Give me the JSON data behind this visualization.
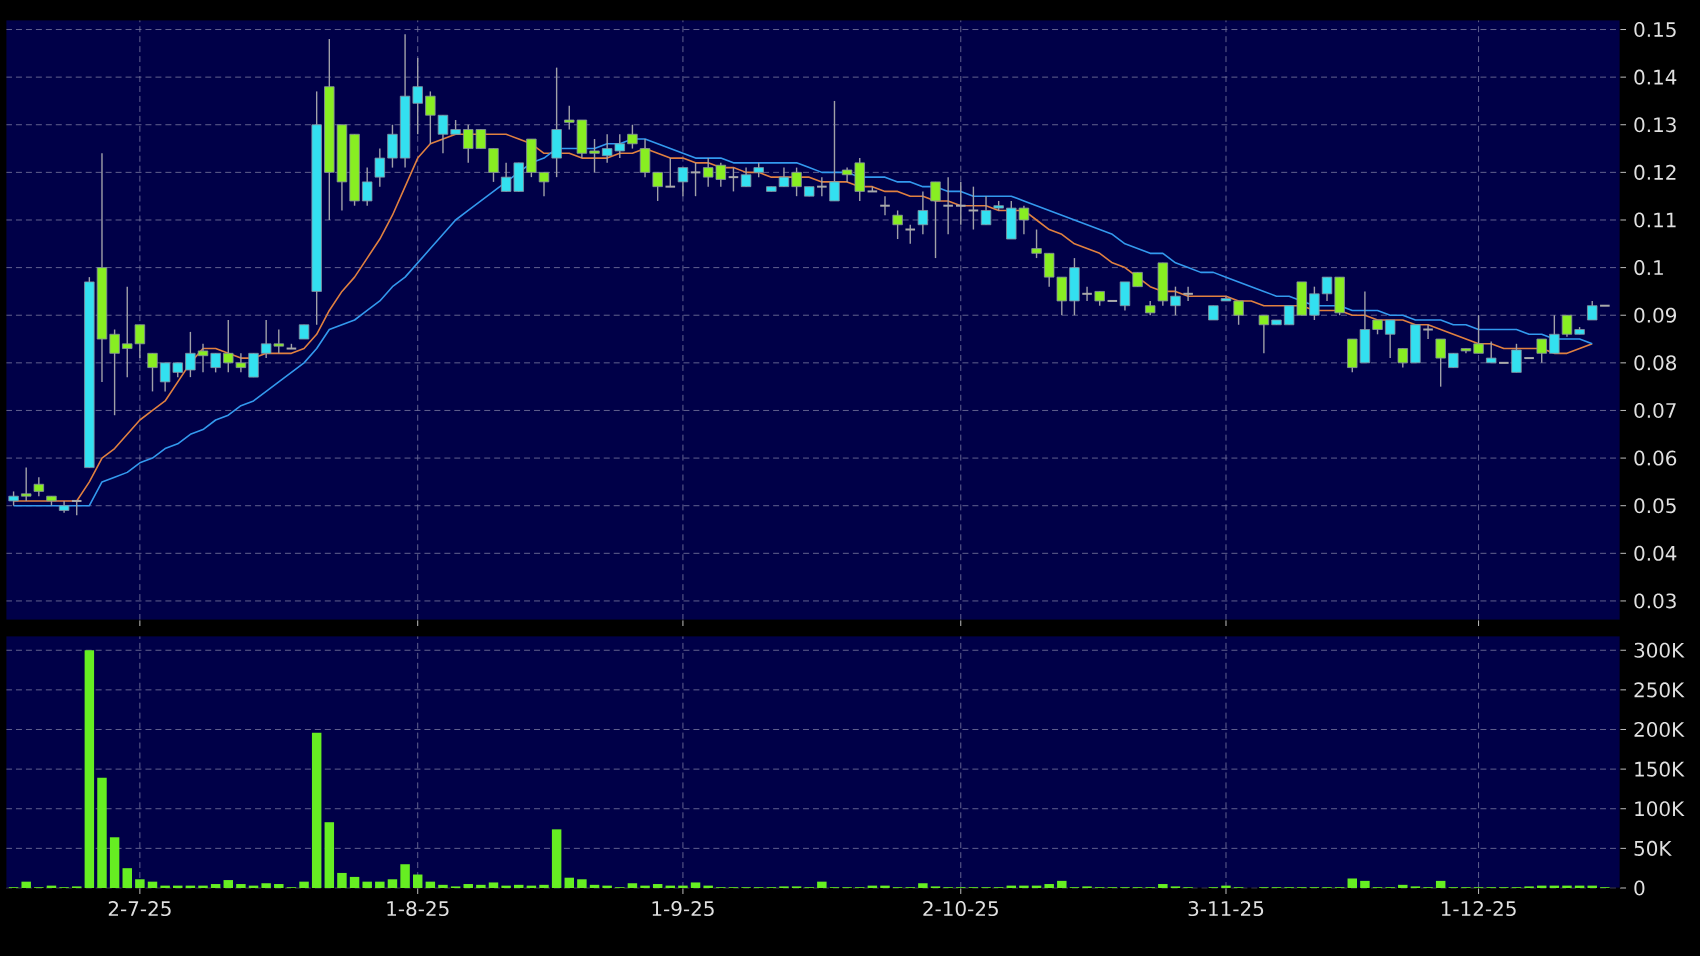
{
  "chart_data": [
    {
      "type": "candlestick",
      "tick_labels": "y",
      "grid": true,
      "categories": [
        null,
        null,
        null,
        null,
        null,
        null,
        null,
        null,
        null,
        null,
        null,
        null,
        null,
        null,
        null,
        null,
        null,
        null,
        null,
        null,
        null,
        null,
        null,
        null,
        null,
        null,
        null,
        null,
        null,
        null,
        null,
        null,
        null,
        null,
        null,
        null,
        null,
        null,
        null,
        null,
        null,
        null,
        null,
        null,
        null,
        null,
        null,
        null,
        null,
        null,
        null,
        null,
        null,
        null,
        null,
        null,
        null,
        null,
        null,
        null,
        null,
        null,
        null,
        null,
        null,
        null,
        null,
        null,
        null,
        null,
        null,
        null,
        null,
        null,
        null,
        null,
        null,
        null,
        null,
        null,
        null,
        null,
        null,
        null,
        null,
        null,
        null,
        null,
        null,
        null,
        null,
        null,
        null,
        null,
        null,
        null,
        null,
        null,
        null,
        null,
        null,
        null,
        null,
        null,
        null,
        null,
        null,
        null,
        null,
        null,
        null,
        null,
        null,
        null,
        null,
        null,
        null,
        null,
        null,
        null,
        null,
        null,
        null,
        null,
        null,
        null,
        null
      ],
      "ohlc": [
        [
          0.051,
          0.053,
          0.05,
          0.052
        ],
        [
          0.0525,
          0.058,
          0.051,
          0.052
        ],
        [
          0.0545,
          0.056,
          0.052,
          0.053
        ],
        [
          0.052,
          0.052,
          0.05,
          0.051
        ],
        [
          0.049,
          0.051,
          0.0485,
          0.05
        ],
        [
          0.051,
          0.051,
          0.048,
          0.051
        ],
        [
          0.058,
          0.098,
          0.058,
          0.097
        ],
        [
          0.1,
          0.124,
          0.076,
          0.085
        ],
        [
          0.086,
          0.087,
          0.069,
          0.082
        ],
        [
          0.084,
          0.096,
          0.077,
          0.083
        ],
        [
          0.088,
          0.088,
          0.081,
          0.084
        ],
        [
          0.082,
          0.082,
          0.074,
          0.079
        ],
        [
          0.076,
          0.08,
          0.074,
          0.08
        ],
        [
          0.078,
          0.08,
          0.077,
          0.08
        ],
        [
          0.0785,
          0.0865,
          0.077,
          0.082
        ],
        [
          0.0825,
          0.084,
          0.078,
          0.0815
        ],
        [
          0.079,
          0.082,
          0.078,
          0.082
        ],
        [
          0.082,
          0.089,
          0.078,
          0.08
        ],
        [
          0.08,
          0.082,
          0.078,
          0.079
        ],
        [
          0.077,
          0.082,
          0.077,
          0.082
        ],
        [
          0.082,
          0.089,
          0.081,
          0.084
        ],
        [
          0.084,
          0.087,
          0.082,
          0.0835
        ],
        [
          0.083,
          0.084,
          0.083,
          0.083
        ],
        [
          0.085,
          0.088,
          0.085,
          0.088
        ],
        [
          0.095,
          0.137,
          0.088,
          0.13
        ],
        [
          0.138,
          0.148,
          0.11,
          0.12
        ],
        [
          0.13,
          0.13,
          0.112,
          0.118
        ],
        [
          0.128,
          0.128,
          0.113,
          0.114
        ],
        [
          0.114,
          0.121,
          0.113,
          0.118
        ],
        [
          0.119,
          0.125,
          0.117,
          0.123
        ],
        [
          0.123,
          0.13,
          0.121,
          0.128
        ],
        [
          0.123,
          0.149,
          0.121,
          0.136
        ],
        [
          0.1345,
          0.144,
          0.128,
          0.138
        ],
        [
          0.136,
          0.137,
          0.126,
          0.132
        ],
        [
          0.128,
          0.132,
          0.124,
          0.132
        ],
        [
          0.128,
          0.131,
          0.128,
          0.129
        ],
        [
          0.129,
          0.13,
          0.122,
          0.125
        ],
        [
          0.129,
          0.129,
          0.125,
          0.125
        ],
        [
          0.125,
          0.125,
          0.118,
          0.12
        ],
        [
          0.116,
          0.122,
          0.116,
          0.119
        ],
        [
          0.116,
          0.122,
          0.116,
          0.122
        ],
        [
          0.127,
          0.127,
          0.119,
          0.12
        ],
        [
          0.12,
          0.12,
          0.115,
          0.118
        ],
        [
          0.123,
          0.142,
          0.119,
          0.129
        ],
        [
          0.131,
          0.134,
          0.129,
          0.1305
        ],
        [
          0.131,
          0.131,
          0.123,
          0.124
        ],
        [
          0.1245,
          0.127,
          0.12,
          0.124
        ],
        [
          0.1235,
          0.128,
          0.122,
          0.125
        ],
        [
          0.1245,
          0.128,
          0.123,
          0.126
        ],
        [
          0.128,
          0.13,
          0.125,
          0.126
        ],
        [
          0.125,
          0.127,
          0.119,
          0.12
        ],
        [
          0.12,
          0.12,
          0.114,
          0.117
        ],
        [
          0.117,
          0.123,
          0.117,
          0.117
        ],
        [
          0.118,
          0.121,
          0.115,
          0.121
        ],
        [
          0.12,
          0.122,
          0.115,
          0.12
        ],
        [
          0.121,
          0.123,
          0.117,
          0.119
        ],
        [
          0.1215,
          0.122,
          0.117,
          0.1185
        ],
        [
          0.119,
          0.121,
          0.116,
          0.119
        ],
        [
          0.117,
          0.121,
          0.117,
          0.1195
        ],
        [
          0.12,
          0.122,
          0.119,
          0.121
        ],
        [
          0.116,
          0.117,
          0.116,
          0.117
        ],
        [
          0.117,
          0.121,
          0.117,
          0.119
        ],
        [
          0.12,
          0.121,
          0.115,
          0.117
        ],
        [
          0.115,
          0.117,
          0.115,
          0.117
        ],
        [
          0.117,
          0.119,
          0.115,
          0.117
        ],
        [
          0.114,
          0.135,
          0.114,
          0.118
        ],
        [
          0.1205,
          0.121,
          0.118,
          0.1195
        ],
        [
          0.122,
          0.123,
          0.114,
          0.116
        ],
        [
          0.116,
          0.117,
          0.116,
          0.116
        ],
        [
          0.113,
          0.115,
          0.111,
          0.113
        ],
        [
          0.111,
          0.112,
          0.106,
          0.109
        ],
        [
          0.108,
          0.109,
          0.105,
          0.108
        ],
        [
          0.109,
          0.116,
          0.107,
          0.112
        ],
        [
          0.118,
          0.118,
          0.102,
          0.114
        ],
        [
          0.113,
          0.119,
          0.107,
          0.113
        ],
        [
          0.113,
          0.118,
          0.109,
          0.113
        ],
        [
          0.112,
          0.117,
          0.108,
          0.112
        ],
        [
          0.109,
          0.115,
          0.109,
          0.112
        ],
        [
          0.1125,
          0.114,
          0.112,
          0.113
        ],
        [
          0.106,
          0.114,
          0.106,
          0.1125
        ],
        [
          0.1125,
          0.113,
          0.107,
          0.11
        ],
        [
          0.104,
          0.108,
          0.102,
          0.103
        ],
        [
          0.103,
          0.103,
          0.096,
          0.098
        ],
        [
          0.098,
          0.098,
          0.09,
          0.093
        ],
        [
          0.093,
          0.102,
          0.09,
          0.1
        ],
        [
          0.0945,
          0.096,
          0.093,
          0.0945
        ],
        [
          0.095,
          0.095,
          0.092,
          0.093
        ],
        [
          0.093,
          0.093,
          0.093,
          0.093
        ],
        [
          0.092,
          0.097,
          0.091,
          0.097
        ],
        [
          0.099,
          0.099,
          0.096,
          0.096
        ],
        [
          0.092,
          0.093,
          0.09,
          0.0905
        ],
        [
          0.101,
          0.101,
          0.092,
          0.093
        ],
        [
          0.092,
          0.096,
          0.09,
          0.094
        ],
        [
          0.0945,
          0.096,
          0.093,
          0.0945
        ],
        null,
        [
          0.089,
          0.092,
          0.089,
          0.092
        ],
        [
          0.093,
          0.094,
          0.093,
          0.0935
        ],
        [
          0.093,
          0.093,
          0.088,
          0.09
        ],
        null,
        [
          0.09,
          0.09,
          0.082,
          0.088
        ],
        [
          0.088,
          0.089,
          0.088,
          0.089
        ],
        [
          0.088,
          0.092,
          0.088,
          0.092
        ],
        [
          0.097,
          0.097,
          0.09,
          0.09
        ],
        [
          0.09,
          0.096,
          0.089,
          0.0945
        ],
        [
          0.0945,
          0.098,
          0.093,
          0.098
        ],
        [
          0.098,
          0.098,
          0.09,
          0.0905
        ],
        [
          0.085,
          0.085,
          0.078,
          0.079
        ],
        [
          0.08,
          0.095,
          0.08,
          0.087
        ],
        [
          0.089,
          0.089,
          0.086,
          0.087
        ],
        [
          0.086,
          0.089,
          0.081,
          0.089
        ],
        [
          0.083,
          0.083,
          0.079,
          0.08
        ],
        [
          0.08,
          0.088,
          0.08,
          0.088
        ],
        [
          0.087,
          0.088,
          0.085,
          0.087
        ],
        [
          0.085,
          0.085,
          0.075,
          0.081
        ],
        [
          0.079,
          0.082,
          0.079,
          0.082
        ],
        [
          0.083,
          0.083,
          0.082,
          0.0825
        ],
        [
          0.084,
          0.09,
          0.082,
          0.082
        ],
        [
          0.08,
          0.0845,
          0.08,
          0.081
        ],
        [
          0.08,
          0.08,
          0.08,
          0.08
        ],
        [
          0.078,
          0.084,
          0.078,
          0.0827
        ],
        [
          0.081,
          0.081,
          0.081,
          0.081
        ],
        [
          0.085,
          0.085,
          0.08,
          0.082
        ],
        [
          0.082,
          0.09,
          0.082,
          0.086
        ],
        [
          0.09,
          0.09,
          0.0855,
          0.086
        ],
        [
          0.086,
          0.0875,
          0.086,
          0.087
        ],
        [
          0.089,
          0.093,
          0.089,
          0.092
        ],
        [
          0.092,
          0.092,
          0.092,
          0.092
        ]
      ],
      "colors": [
        "#33e0f0",
        "#88ee22",
        "#88ee22",
        "#88ee22",
        "#33e0f0",
        "#aaaaaa",
        "#33e0f0",
        "#88ee22",
        "#88ee22",
        "#88ee22",
        "#88ee22",
        "#88ee22",
        "#33e0f0",
        "#33e0f0",
        "#33e0f0",
        "#88ee22",
        "#33e0f0",
        "#88ee22",
        "#88ee22",
        "#33e0f0",
        "#33e0f0",
        "#88ee22",
        "#aaaaaa",
        "#33e0f0",
        "#33e0f0",
        "#88ee22",
        "#88ee22",
        "#88ee22",
        "#33e0f0",
        "#33e0f0",
        "#33e0f0",
        "#33e0f0",
        "#33e0f0",
        "#88ee22",
        "#33e0f0",
        "#33e0f0",
        "#88ee22",
        "#88ee22",
        "#88ee22",
        "#33e0f0",
        "#33e0f0",
        "#88ee22",
        "#88ee22",
        "#33e0f0",
        "#88ee22",
        "#88ee22",
        "#88ee22",
        "#33e0f0",
        "#33e0f0",
        "#88ee22",
        "#88ee22",
        "#88ee22",
        "#aaaaaa",
        "#33e0f0",
        "#aaaaaa",
        "#88ee22",
        "#88ee22",
        "#aaaaaa",
        "#33e0f0",
        "#33e0f0",
        "#33e0f0",
        "#33e0f0",
        "#88ee22",
        "#33e0f0",
        "#aaaaaa",
        "#33e0f0",
        "#88ee22",
        "#88ee22",
        "#aaaaaa",
        "#aaaaaa",
        "#88ee22",
        "#aaaaaa",
        "#33e0f0",
        "#88ee22",
        "#aaaaaa",
        "#aaaaaa",
        "#aaaaaa",
        "#33e0f0",
        "#33e0f0",
        "#33e0f0",
        "#88ee22",
        "#88ee22",
        "#88ee22",
        "#88ee22",
        "#33e0f0",
        "#aaaaaa",
        "#88ee22",
        "#aaaaaa",
        "#33e0f0",
        "#88ee22",
        "#88ee22",
        "#88ee22",
        "#33e0f0",
        "#aaaaaa",
        null,
        "#33e0f0",
        "#33e0f0",
        "#88ee22",
        null,
        "#88ee22",
        "#33e0f0",
        "#33e0f0",
        "#88ee22",
        "#33e0f0",
        "#33e0f0",
        "#88ee22",
        "#88ee22",
        "#33e0f0",
        "#88ee22",
        "#33e0f0",
        "#88ee22",
        "#33e0f0",
        "#aaaaaa",
        "#88ee22",
        "#33e0f0",
        "#88ee22",
        "#88ee22",
        "#33e0f0",
        "#aaaaaa",
        "#33e0f0",
        "#aaaaaa",
        "#88ee22",
        "#33e0f0",
        "#88ee22",
        "#33e0f0",
        "#33e0f0",
        "#aaaaaa"
      ],
      "series": [
        {
          "type": "line",
          "color": "#e08040",
          "values": [
            0.051,
            0.051,
            0.051,
            0.051,
            0.051,
            0.051,
            0.055,
            0.06,
            0.062,
            0.065,
            0.068,
            0.07,
            0.072,
            0.076,
            0.08,
            0.083,
            0.083,
            0.082,
            0.081,
            0.081,
            0.082,
            0.082,
            0.082,
            0.083,
            0.086,
            0.091,
            0.095,
            0.098,
            0.102,
            0.106,
            0.111,
            0.117,
            0.123,
            0.126,
            0.127,
            0.128,
            0.128,
            0.128,
            0.128,
            0.128,
            0.127,
            0.126,
            0.124,
            0.124,
            0.124,
            0.123,
            0.123,
            0.123,
            0.124,
            0.124,
            0.125,
            0.124,
            0.123,
            0.123,
            0.122,
            0.122,
            0.121,
            0.121,
            0.12,
            0.12,
            0.119,
            0.119,
            0.119,
            0.119,
            0.118,
            0.118,
            0.118,
            0.117,
            0.117,
            0.116,
            0.116,
            0.115,
            0.115,
            0.114,
            0.114,
            0.113,
            0.113,
            0.113,
            0.112,
            0.112,
            0.112,
            0.11,
            0.108,
            0.107,
            0.105,
            0.104,
            0.103,
            0.101,
            0.1,
            0.098,
            0.096,
            0.095,
            0.095,
            0.094,
            0.094,
            0.094,
            0.094,
            0.093,
            0.093,
            0.092,
            0.092,
            0.092,
            0.092,
            0.091,
            0.091,
            0.091,
            0.09,
            0.09,
            0.089,
            0.089,
            0.089,
            0.088,
            0.088,
            0.087,
            0.086,
            0.085,
            0.084,
            0.084,
            0.083,
            0.083,
            0.083,
            0.083,
            0.082,
            0.082,
            0.083,
            0.084,
            null
          ]
        },
        {
          "type": "line",
          "color": "#3399ee",
          "values": [
            0.05,
            0.05,
            0.05,
            0.05,
            0.05,
            0.05,
            0.05,
            0.055,
            0.056,
            0.057,
            0.059,
            0.06,
            0.062,
            0.063,
            0.065,
            0.066,
            0.068,
            0.069,
            0.071,
            0.072,
            0.074,
            0.076,
            0.078,
            0.08,
            0.083,
            0.087,
            0.088,
            0.089,
            0.091,
            0.093,
            0.096,
            0.098,
            0.101,
            0.104,
            0.107,
            0.11,
            0.112,
            0.114,
            0.116,
            0.118,
            0.12,
            0.122,
            0.123,
            0.125,
            0.125,
            0.125,
            0.125,
            0.126,
            0.126,
            0.127,
            0.127,
            0.126,
            0.125,
            0.124,
            0.123,
            0.123,
            0.123,
            0.122,
            0.122,
            0.122,
            0.122,
            0.122,
            0.122,
            0.121,
            0.12,
            0.12,
            0.12,
            0.119,
            0.119,
            0.119,
            0.118,
            0.118,
            0.117,
            0.117,
            0.116,
            0.116,
            0.115,
            0.115,
            0.115,
            0.115,
            0.114,
            0.113,
            0.112,
            0.111,
            0.11,
            0.109,
            0.108,
            0.107,
            0.105,
            0.104,
            0.103,
            0.103,
            0.101,
            0.1,
            0.099,
            0.099,
            0.098,
            0.097,
            0.096,
            0.095,
            0.094,
            0.094,
            0.093,
            0.092,
            0.092,
            0.092,
            0.091,
            0.091,
            0.091,
            0.09,
            0.09,
            0.089,
            0.089,
            0.089,
            0.088,
            0.088,
            0.087,
            0.087,
            0.087,
            0.087,
            0.086,
            0.086,
            0.085,
            0.085,
            0.085,
            0.084,
            null
          ]
        }
      ],
      "ylim": [
        0.026,
        0.152
      ],
      "yticks": [
        0.03,
        0.04,
        0.05,
        0.06,
        0.07,
        0.08,
        0.09,
        0.1,
        0.11,
        0.12,
        0.13,
        0.14,
        0.15
      ]
    },
    {
      "type": "bar",
      "grid": true,
      "color": "#66ee22",
      "categories": [
        null,
        null,
        null,
        null,
        null,
        null,
        null,
        null,
        null,
        null,
        "2-7-25",
        null,
        null,
        null,
        null,
        null,
        null,
        null,
        null,
        null,
        null,
        null,
        null,
        null,
        null,
        null,
        null,
        null,
        null,
        null,
        null,
        null,
        "1-8-25",
        null,
        null,
        null,
        null,
        null,
        null,
        null,
        null,
        null,
        null,
        null,
        null,
        null,
        null,
        null,
        null,
        null,
        null,
        null,
        null,
        "1-9-25",
        null,
        null,
        null,
        null,
        null,
        null,
        null,
        null,
        null,
        null,
        null,
        null,
        null,
        null,
        null,
        null,
        null,
        null,
        null,
        null,
        null,
        "2-10-25",
        null,
        null,
        null,
        null,
        null,
        null,
        null,
        null,
        null,
        null,
        null,
        null,
        null,
        null,
        null,
        null,
        null,
        null,
        null,
        null,
        "3-11-25",
        null,
        null,
        null,
        null,
        null,
        null,
        null,
        null,
        null,
        null,
        null,
        null,
        null,
        null,
        null,
        null,
        null,
        null,
        null,
        "1-12-25",
        null,
        null,
        null,
        null,
        null,
        null,
        null,
        null,
        null,
        null
      ],
      "values": [
        1000,
        8000,
        1000,
        3000,
        1000,
        2000,
        300000,
        139000,
        64000,
        25000,
        11000,
        8000,
        3000,
        3000,
        3000,
        3000,
        5000,
        10000,
        5000,
        3000,
        6000,
        5000,
        1000,
        8000,
        196000,
        83000,
        19000,
        14000,
        8000,
        8000,
        11000,
        30000,
        17000,
        8000,
        4000,
        2000,
        5000,
        4000,
        7000,
        3000,
        4000,
        3000,
        4000,
        74000,
        13000,
        11000,
        4000,
        3000,
        1000,
        6000,
        3000,
        5000,
        3000,
        3000,
        7000,
        3000,
        1000,
        1000,
        1000,
        1000,
        1000,
        2000,
        2000,
        1000,
        8000,
        1000,
        1000,
        1000,
        3000,
        3000,
        1000,
        1000,
        6000,
        2000,
        1000,
        1000,
        1000,
        1000,
        1000,
        3000,
        3000,
        3000,
        5000,
        9000,
        1000,
        2000,
        1000,
        1000,
        1000,
        1000,
        1000,
        5000,
        2000,
        1000,
        null,
        1000,
        3000,
        1000,
        null,
        1000,
        1000,
        1000,
        1000,
        1000,
        1000,
        1000,
        12000,
        9000,
        1000,
        1000,
        4000,
        2000,
        1000,
        9000,
        1000,
        1000,
        1000,
        1000,
        1000,
        1000,
        2000,
        3000,
        3000,
        3000,
        3000,
        3000,
        1000
      ],
      "ylim": [
        0,
        318000
      ],
      "yticks": [
        0,
        {
          "value": 50000,
          "label": "50K"
        },
        {
          "value": 100000,
          "label": "100K"
        },
        {
          "value": 150000,
          "label": "150K"
        },
        {
          "value": 200000,
          "label": "200K"
        },
        {
          "value": 250000,
          "label": "250K"
        },
        {
          "value": 300000,
          "label": "300K"
        }
      ]
    }
  ]
}
